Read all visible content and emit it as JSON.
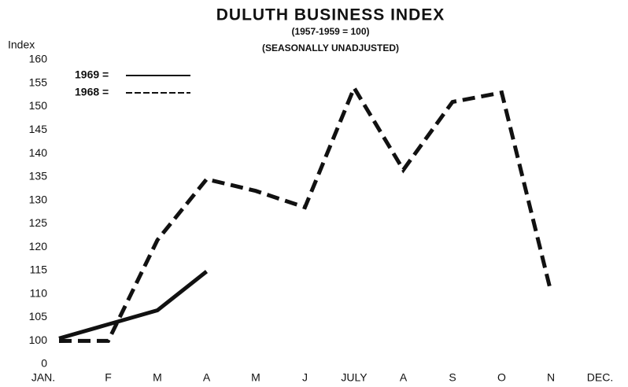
{
  "chart_data": {
    "type": "line",
    "title": "DULUTH BUSINESS INDEX",
    "subtitle": [
      "(1957-1959 = 100)",
      "(SEASONALLY UNADJUSTED)"
    ],
    "ylabel": "Index",
    "categories": [
      "JAN.",
      "F",
      "M",
      "A",
      "M",
      "J",
      "JULY",
      "A",
      "S",
      "O",
      "N",
      "DEC."
    ],
    "series": [
      {
        "name": "1969 =",
        "color": "#111111",
        "dashed": false,
        "values": [
          100.5,
          103.5,
          106.5,
          114.8,
          null,
          null,
          null,
          null,
          null,
          null,
          null,
          null
        ]
      },
      {
        "name": "1968 =",
        "color": "#111111",
        "dashed": true,
        "values": [
          99.3,
          99.5,
          121.5,
          134.5,
          132,
          128.5,
          154,
          136.5,
          151,
          153,
          110.5,
          null
        ]
      }
    ],
    "ylim": [
      0,
      160
    ],
    "axis_break": [
      0,
      100
    ],
    "yticks": [
      0,
      100,
      105,
      110,
      115,
      120,
      125,
      130,
      135,
      140,
      145,
      150,
      155,
      160
    ],
    "legend": "top-left"
  }
}
